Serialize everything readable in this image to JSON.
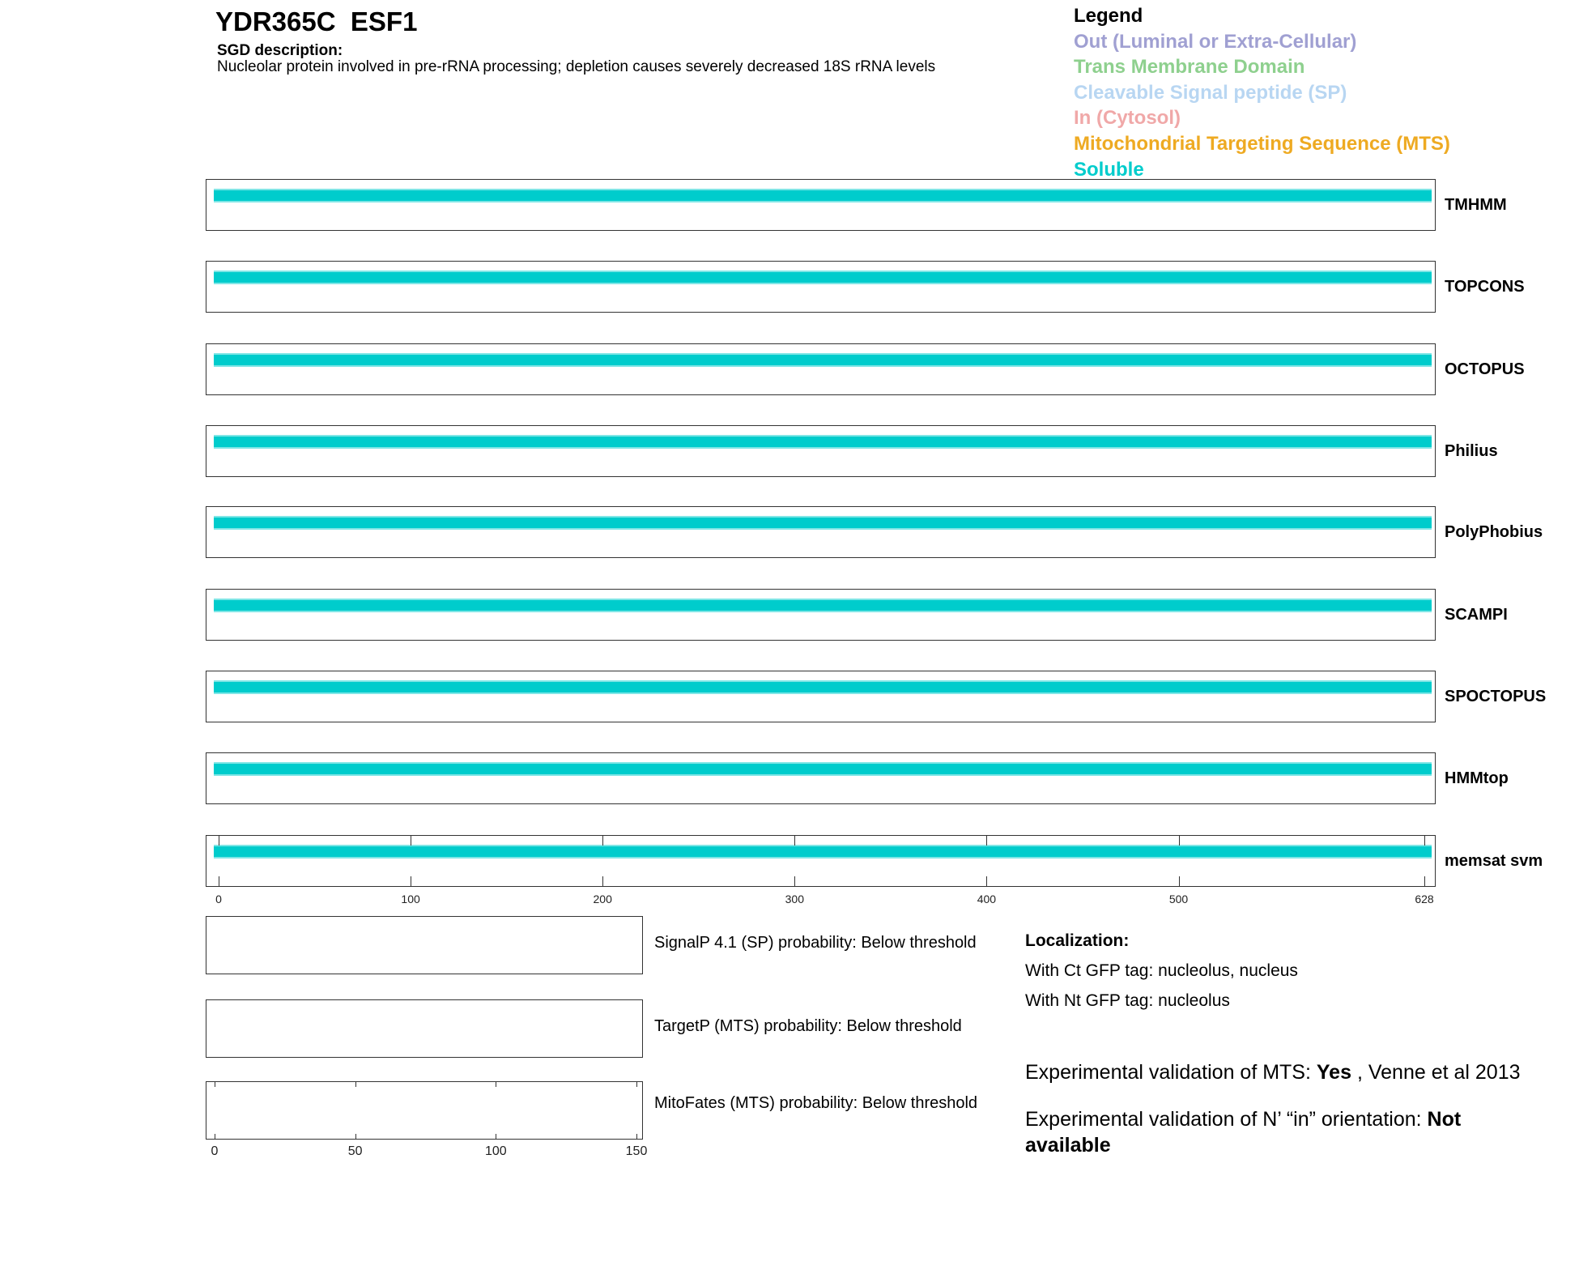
{
  "header": {
    "title": "YDR365C  ESF1",
    "sgd_heading": "SGD description:",
    "sgd_text": "Nucleolar protein involved in pre-rRNA processing; depletion causes severely decreased 18S rRNA levels"
  },
  "legend": {
    "title": "Legend",
    "items": [
      {
        "label": "Out (Luminal or Extra-Cellular)",
        "color": "#a0a0d2"
      },
      {
        "label": "Trans Membrane Domain",
        "color": "#8ed08e"
      },
      {
        "label": "Cleavable Signal peptide (SP)",
        "color": "#b8d6f2"
      },
      {
        "label": "In (Cytosol)",
        "color": "#f0a8a8"
      },
      {
        "label": "Mitochondrial Targeting Sequence (MTS)",
        "color": "#eeaa22"
      },
      {
        "label": "Soluble",
        "color": "#00cccc"
      }
    ]
  },
  "chart_data": [
    {
      "type": "bar",
      "title": "",
      "xlim": [
        0,
        628
      ],
      "xticks": [
        "0",
        "100",
        "200",
        "300",
        "400",
        "500",
        "628"
      ],
      "series": [
        {
          "name": "TMHMM",
          "segments": [
            {
              "start": 1,
              "end": 628,
              "class": "Soluble"
            }
          ]
        },
        {
          "name": "TOPCONS",
          "segments": [
            {
              "start": 1,
              "end": 628,
              "class": "Soluble"
            }
          ]
        },
        {
          "name": "OCTOPUS",
          "segments": [
            {
              "start": 1,
              "end": 628,
              "class": "Soluble"
            }
          ]
        },
        {
          "name": "Philius",
          "segments": [
            {
              "start": 1,
              "end": 628,
              "class": "Soluble"
            }
          ]
        },
        {
          "name": "PolyPhobius",
          "segments": [
            {
              "start": 1,
              "end": 628,
              "class": "Soluble"
            }
          ]
        },
        {
          "name": "SCAMPI",
          "segments": [
            {
              "start": 1,
              "end": 628,
              "class": "Soluble"
            }
          ]
        },
        {
          "name": "SPOCTOPUS",
          "segments": [
            {
              "start": 1,
              "end": 628,
              "class": "Soluble"
            }
          ]
        },
        {
          "name": "HMMtop",
          "segments": [
            {
              "start": 1,
              "end": 628,
              "class": "Soluble"
            }
          ]
        },
        {
          "name": "memsat svm",
          "segments": [
            {
              "start": 1,
              "end": 628,
              "class": "Soluble"
            }
          ]
        }
      ]
    },
    {
      "type": "line",
      "xlim": [
        0,
        150
      ],
      "xticks": [
        "0",
        "50",
        "100",
        "150"
      ],
      "panels": [
        {
          "label": "SignalP 4.1 (SP) probability: Below threshold"
        },
        {
          "label": "TargetP (MTS) probability: Below threshold"
        },
        {
          "label": "MitoFates (MTS) probability: Below threshold"
        }
      ]
    }
  ],
  "localization": {
    "heading": "Localization:",
    "ct": "With Ct GFP tag: nucleolus, nucleus",
    "nt": "With Nt GFP tag: nucleolus"
  },
  "validation": {
    "mts_prefix": "Experimental validation of MTS: ",
    "mts_value": "Yes",
    "mts_suffix": " , Venne et al 2013",
    "nin_prefix": "Experimental validation of N’ “in” orientation: ",
    "nin_value": "Not available"
  }
}
